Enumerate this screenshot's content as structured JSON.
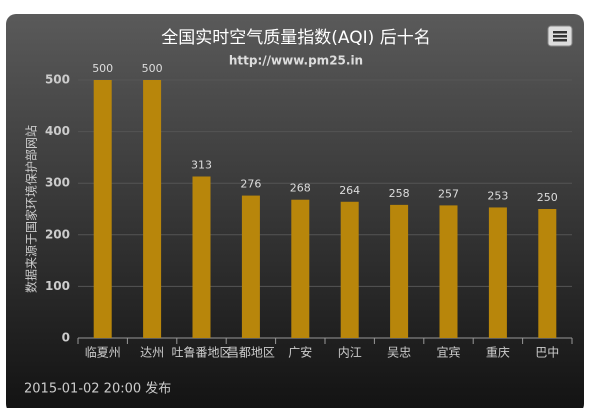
{
  "chart_data": {
    "type": "bar",
    "title": "全国实时空气质量指数(AQI) 后十名",
    "subtitle": "http://www.pm25.in",
    "y_label": "数据来源于国家环境保护部网站",
    "footer": "2015-01-02 20:00 发布",
    "categories": [
      "临夏州",
      "达州",
      "吐鲁番地区",
      "昌都地区",
      "广安",
      "内江",
      "吴忠",
      "宜宾",
      "重庆",
      "巴中"
    ],
    "values": [
      500,
      500,
      313,
      276,
      268,
      264,
      258,
      257,
      253,
      250
    ],
    "color": "#b8860b",
    "ylim": [
      0,
      500
    ],
    "yticks": [
      0,
      100,
      200,
      300,
      400,
      500
    ],
    "grid": true
  }
}
